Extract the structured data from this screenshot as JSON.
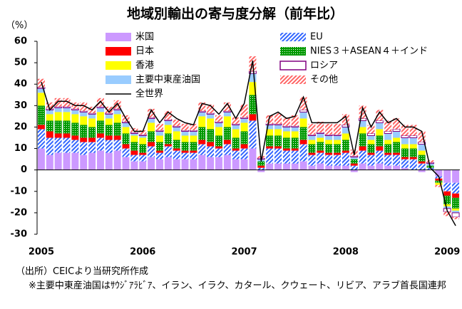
{
  "chart_data": {
    "type": "bar",
    "title": "地域別輸出の寄与度分解（前年比）",
    "y_label": "（%）",
    "categories": [
      "2005",
      null,
      null,
      null,
      null,
      null,
      null,
      null,
      null,
      null,
      null,
      null,
      "2006",
      null,
      null,
      null,
      null,
      null,
      null,
      null,
      null,
      null,
      null,
      null,
      "2007",
      null,
      null,
      null,
      null,
      null,
      null,
      null,
      null,
      null,
      null,
      null,
      "2008",
      null,
      null,
      null,
      null,
      null,
      null,
      null,
      null,
      null,
      null,
      null,
      "2009",
      null
    ],
    "ylim": [
      -30,
      60
    ],
    "yticks": [
      60,
      50,
      40,
      30,
      20,
      10,
      0,
      -10,
      -20,
      -30
    ],
    "grid": false,
    "stacked": true,
    "series": [
      {
        "name": "米国",
        "color": "#cc99ff",
        "pattern": "solid",
        "values": [
          10,
          7,
          8,
          8,
          8,
          7,
          8,
          9,
          8,
          9,
          6,
          4,
          4,
          6,
          5,
          6,
          5,
          5,
          5,
          7,
          6,
          6,
          7,
          5,
          5,
          10,
          -1,
          3,
          3,
          3,
          3,
          4,
          2,
          3,
          2,
          2,
          2,
          -1,
          3,
          2,
          3,
          2,
          2,
          1,
          0,
          -1,
          0,
          -3,
          -6,
          -6
        ]
      },
      {
        "name": "日本",
        "color": "#ff0000",
        "pattern": "solid",
        "values": [
          2,
          3,
          2,
          2,
          2,
          2,
          2,
          2,
          2,
          2,
          2,
          2,
          1,
          2,
          1,
          1,
          1,
          1,
          1,
          2,
          2,
          1,
          2,
          1,
          2,
          3,
          1,
          1,
          1,
          1,
          1,
          2,
          1,
          1,
          1,
          1,
          1,
          1,
          2,
          1,
          2,
          1,
          1,
          1,
          1,
          1,
          0,
          -1,
          -2,
          -2
        ]
      },
      {
        "name": "香港",
        "color": "#ffff00",
        "pattern": "solid",
        "values": [
          6,
          3,
          4,
          4,
          4,
          4,
          4,
          4,
          3,
          4,
          3,
          3,
          3,
          4,
          3,
          4,
          4,
          3,
          3,
          5,
          5,
          4,
          5,
          4,
          4,
          6,
          0,
          3,
          3,
          3,
          3,
          4,
          2,
          2,
          2,
          2,
          3,
          0,
          3,
          2,
          3,
          2,
          2,
          2,
          2,
          2,
          0,
          -1,
          -1,
          -1
        ]
      },
      {
        "name": "主要中東産油国",
        "color": "#99ccff",
        "pattern": "solid",
        "values": [
          2,
          2,
          2,
          2,
          2,
          2,
          2,
          2,
          2,
          2,
          2,
          1,
          1,
          2,
          2,
          2,
          2,
          2,
          2,
          2,
          2,
          2,
          2,
          2,
          2,
          4,
          1,
          2,
          2,
          2,
          2,
          3,
          2,
          2,
          2,
          2,
          3,
          1,
          3,
          2,
          3,
          3,
          3,
          3,
          3,
          3,
          1,
          0,
          -1,
          -1
        ]
      },
      {
        "name": "EU",
        "color": "#3366ff",
        "pattern": "hatch",
        "values": [
          9,
          8,
          7,
          7,
          6,
          6,
          5,
          6,
          6,
          5,
          4,
          3,
          3,
          5,
          3,
          5,
          4,
          3,
          3,
          5,
          5,
          4,
          5,
          4,
          5,
          13,
          1,
          7,
          7,
          6,
          6,
          8,
          5,
          5,
          5,
          5,
          6,
          2,
          6,
          5,
          6,
          5,
          5,
          4,
          5,
          3,
          1,
          -1,
          -4,
          -5
        ]
      },
      {
        "name": "NIES３＋ASEAN４＋インド",
        "color": "#009900",
        "pattern": "dots",
        "values": [
          9,
          5,
          6,
          6,
          6,
          6,
          5,
          6,
          5,
          6,
          5,
          4,
          4,
          5,
          4,
          5,
          4,
          4,
          4,
          6,
          6,
          5,
          6,
          5,
          6,
          9,
          2,
          5,
          5,
          5,
          5,
          6,
          4,
          4,
          4,
          4,
          5,
          2,
          6,
          4,
          5,
          4,
          5,
          4,
          4,
          3,
          1,
          -1,
          -4,
          -5
        ]
      },
      {
        "name": "ロシア",
        "color": "#800080",
        "pattern": "outline",
        "values": [
          0.5,
          0.5,
          0.5,
          0.5,
          0.5,
          0.5,
          0.5,
          0.5,
          0.5,
          0.5,
          0.5,
          0.5,
          0.5,
          0.5,
          0.5,
          0.5,
          0.5,
          0.5,
          0.5,
          0.5,
          0.5,
          0.5,
          0.5,
          0.5,
          0.5,
          1,
          0.5,
          0.5,
          0.5,
          0.5,
          0.5,
          1,
          0.5,
          0.5,
          0.5,
          0.5,
          1,
          0.5,
          1,
          1,
          1,
          1,
          1,
          1,
          1,
          1,
          0.5,
          0,
          -1.5,
          -2
        ]
      },
      {
        "name": "その他",
        "color": "#ff6666",
        "pattern": "hatch",
        "values": [
          4,
          3,
          4,
          4,
          3,
          4,
          3,
          4,
          3,
          4,
          3,
          2,
          2,
          4,
          3,
          4,
          3,
          3,
          3,
          4,
          4,
          3,
          4,
          3,
          6,
          7,
          1,
          4,
          5,
          4,
          5,
          6,
          5,
          5,
          5,
          5,
          5,
          3,
          6,
          4,
          5,
          5,
          5,
          5,
          5,
          5,
          1,
          -1,
          -2,
          -1
        ]
      }
    ],
    "line": {
      "name": "全世界",
      "color": "#000000",
      "values": [
        41,
        28,
        32,
        32,
        30,
        30,
        28,
        32,
        27,
        31,
        24,
        18,
        18,
        28,
        22,
        27,
        24,
        22,
        21,
        31,
        30,
        26,
        31,
        24,
        31,
        51,
        4,
        25,
        27,
        24,
        25,
        34,
        22,
        22,
        22,
        22,
        25,
        7,
        29,
        20,
        27,
        22,
        24,
        20,
        20,
        18,
        1,
        -3,
        -19,
        -26
      ]
    },
    "notes": [
      "（出所）CEICより当研究所作成",
      "※主要中東産油国はｻｳｼﾞｱﾗﾋﾞｱ、イラン、イラク、カタール、クウェート、リビア、アラブ首長国連邦"
    ]
  }
}
